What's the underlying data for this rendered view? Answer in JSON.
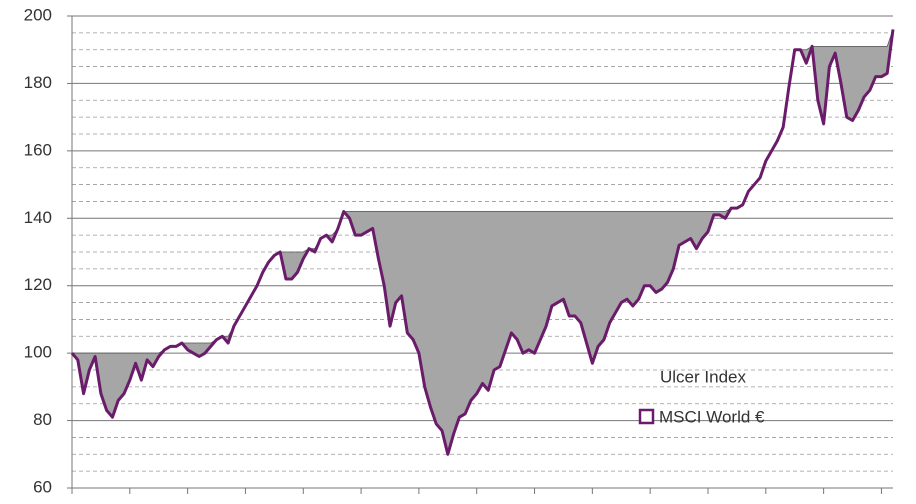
{
  "chart_data": {
    "type": "drawdown-line",
    "annotation": "Ulcer Index",
    "x": [
      0,
      1,
      2,
      3,
      4,
      5,
      6,
      7,
      8,
      9,
      10,
      11,
      12,
      13,
      14,
      15,
      16,
      17,
      18,
      19,
      20,
      21,
      22,
      23,
      24,
      25,
      26,
      27,
      28,
      29,
      30,
      31,
      32,
      33,
      34,
      35,
      36,
      37,
      38,
      39,
      40,
      41,
      42,
      43,
      44,
      45,
      46,
      47,
      48,
      49,
      50,
      51,
      52,
      53,
      54,
      55,
      56,
      57,
      58,
      59,
      60,
      61,
      62,
      63,
      64,
      65,
      66,
      67,
      68,
      69,
      70,
      71,
      72,
      73,
      74,
      75,
      76,
      77,
      78,
      79,
      80,
      81,
      82,
      83,
      84,
      85,
      86,
      87,
      88,
      89,
      90,
      91,
      92,
      93,
      94,
      95,
      96,
      97,
      98,
      99,
      100,
      101,
      102,
      103,
      104,
      105,
      106,
      107,
      108,
      109,
      110,
      111,
      112,
      113,
      114,
      115,
      116,
      117,
      118,
      119,
      120,
      121,
      122,
      123,
      124,
      125,
      126,
      127,
      128,
      129,
      130,
      131,
      132,
      133,
      134,
      135,
      136,
      137,
      138,
      139,
      140,
      141,
      142
    ],
    "series": [
      {
        "name": "MSCI World €",
        "color": "#6a1b6a",
        "values": [
          100,
          98,
          88,
          95,
          99,
          88,
          83,
          81,
          86,
          88,
          92,
          97,
          92,
          98,
          96,
          99,
          101,
          102,
          102,
          103,
          101,
          100,
          99,
          100,
          102,
          104,
          105,
          103,
          108,
          111,
          114,
          117,
          120,
          124,
          127,
          129,
          130,
          122,
          122,
          124,
          128,
          131,
          130,
          134,
          135,
          133,
          137,
          142,
          140,
          135,
          135,
          136,
          137,
          128,
          120,
          108,
          115,
          117,
          106,
          104,
          100,
          90,
          84,
          79,
          77,
          70,
          76,
          81,
          82,
          86,
          88,
          91,
          89,
          95,
          96,
          101,
          106,
          104,
          100,
          101,
          100,
          104,
          108,
          114,
          115,
          116,
          111,
          111,
          109,
          103,
          97,
          102,
          104,
          109,
          112,
          115,
          116,
          114,
          116,
          120,
          120,
          118,
          119,
          121,
          125,
          132,
          133,
          134,
          131,
          134,
          136,
          141,
          141,
          140,
          143,
          143,
          144,
          148,
          150,
          152,
          157,
          160,
          163,
          167,
          179,
          190,
          190,
          186,
          191,
          175,
          168,
          185,
          189,
          180,
          170,
          169,
          172,
          176,
          178,
          182,
          182,
          183,
          196
        ]
      }
    ],
    "drawdown_color": "#a6a6a6",
    "xlim": [
      0,
      142
    ],
    "xticks": [
      0,
      10,
      20,
      30,
      40,
      50,
      60,
      70,
      80,
      90,
      100,
      110,
      120,
      130,
      140
    ],
    "ylim": [
      60,
      200
    ],
    "yticks": [
      60,
      80,
      100,
      120,
      140,
      160,
      180,
      200
    ],
    "y_minor_ticks": [
      65,
      70,
      75,
      85,
      90,
      95,
      105,
      110,
      115,
      125,
      130,
      135,
      145,
      150,
      155,
      165,
      170,
      175,
      185,
      190,
      195
    ],
    "grid": true
  }
}
